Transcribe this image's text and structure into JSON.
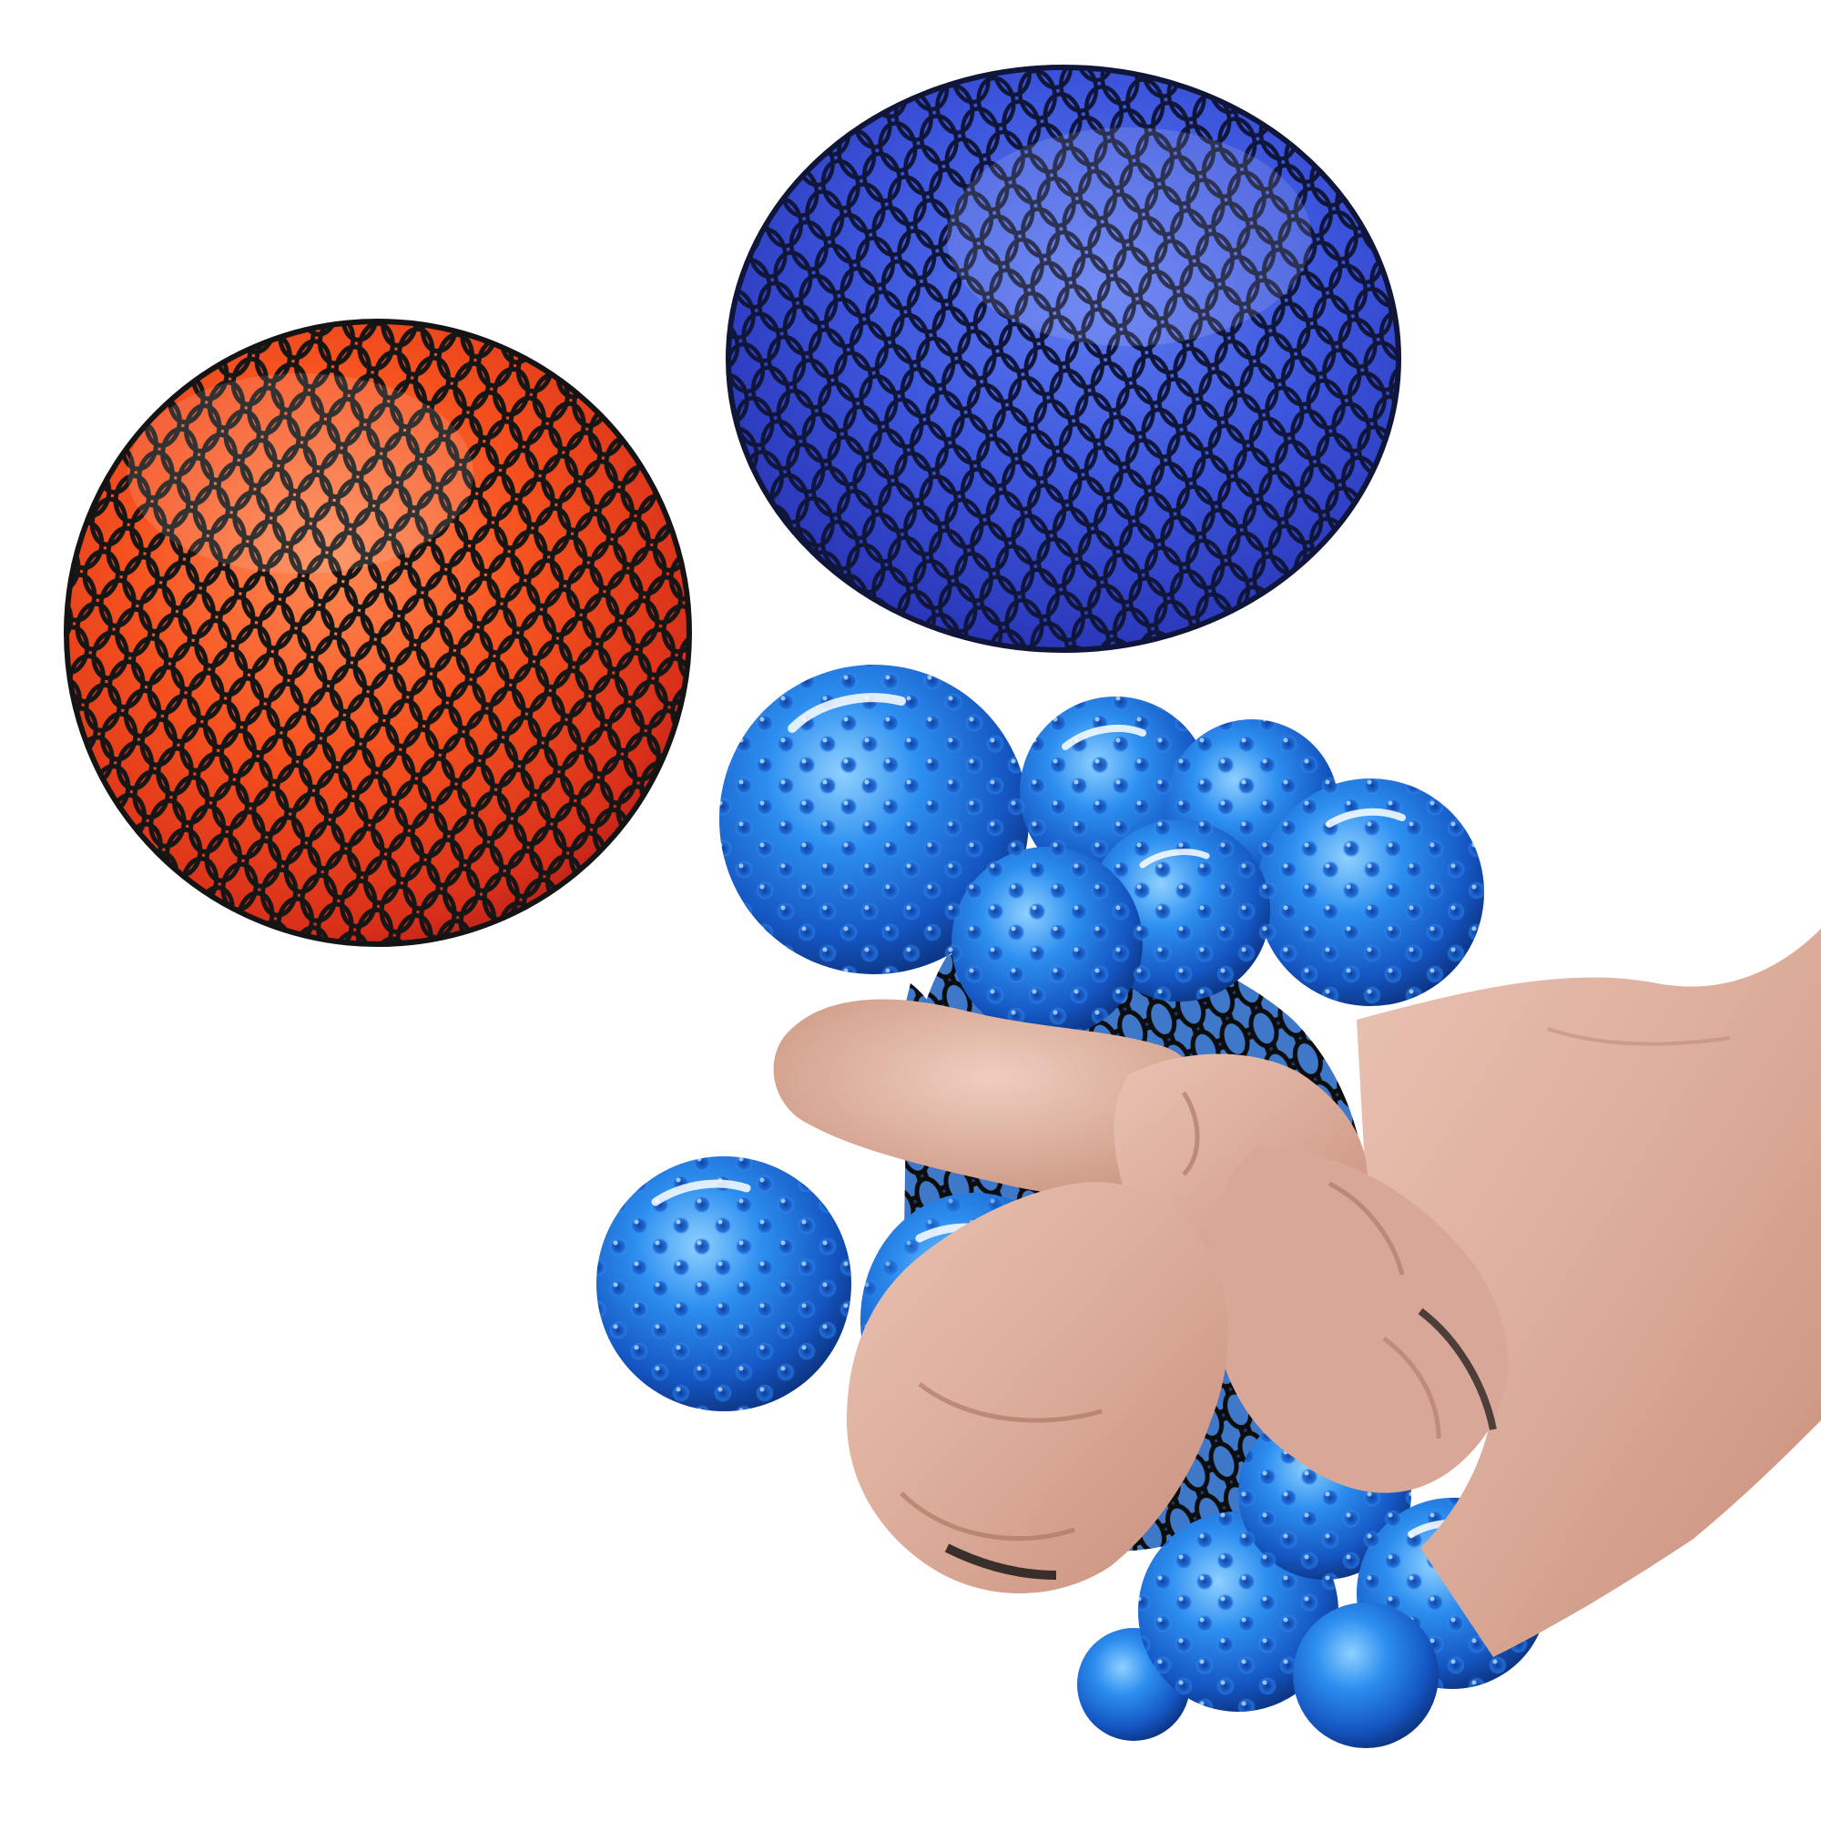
{
  "scene": {
    "background": "#ffffff",
    "objects": [
      {
        "name": "red-mesh-stress-ball",
        "color": "#f0431c",
        "mesh_color": "#141414"
      },
      {
        "name": "blue-mesh-stress-ball",
        "color": "#3850d8",
        "mesh_color": "#10163a"
      },
      {
        "name": "squeezed-blue-mesh-stress-ball",
        "color": "#1e6fe0",
        "mesh_color": "#111111"
      },
      {
        "name": "hand",
        "color": "#ddb0a2"
      }
    ]
  }
}
